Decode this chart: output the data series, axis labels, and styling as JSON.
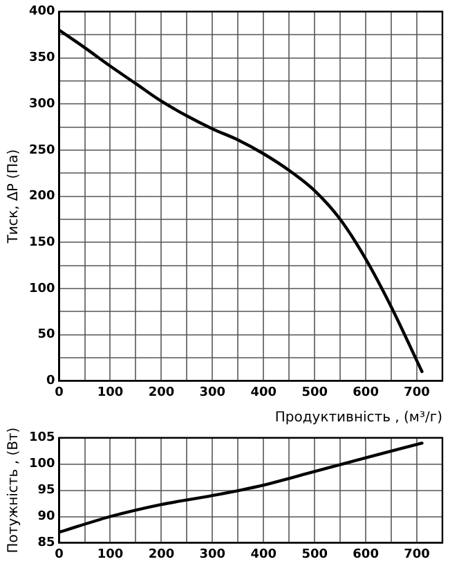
{
  "chart_data": [
    {
      "type": "line",
      "xlabel": "Продуктивність , (м³/г)",
      "ylabel": "Тиск, ΔP (Па)",
      "series": [
        {
          "color": "#000000",
          "x": [
            0,
            50,
            100,
            150,
            200,
            250,
            300,
            350,
            400,
            450,
            500,
            550,
            600,
            650,
            710
          ],
          "values": [
            380,
            361,
            341,
            322,
            303,
            287,
            273,
            261,
            246,
            228,
            206,
            175,
            132,
            80,
            10
          ]
        }
      ],
      "xlim": [
        0,
        750
      ],
      "xticks": [
        0,
        {
          "value": 50,
          "label": null
        },
        100,
        {
          "value": 150,
          "label": null
        },
        200,
        {
          "value": 250,
          "label": null
        },
        300,
        {
          "value": 350,
          "label": null
        },
        400,
        {
          "value": 450,
          "label": null
        },
        500,
        {
          "value": 550,
          "label": null
        },
        600,
        {
          "value": 650,
          "label": null
        },
        700
      ],
      "ylim": [
        0,
        400
      ],
      "yticks": [
        0,
        {
          "value": 25,
          "label": null
        },
        50,
        {
          "value": 75,
          "label": null
        },
        100,
        {
          "value": 125,
          "label": null
        },
        150,
        {
          "value": 175,
          "label": null
        },
        200,
        {
          "value": 225,
          "label": null
        },
        250,
        {
          "value": 275,
          "label": null
        },
        300,
        {
          "value": 325,
          "label": null
        },
        350,
        {
          "value": 375,
          "label": null
        },
        400
      ],
      "grid": true,
      "legend": false,
      "marker": "none",
      "line_style": "solid"
    },
    {
      "type": "line",
      "ylabel": "Потужність , (Вт)",
      "series": [
        {
          "color": "#000000",
          "x": [
            0,
            100,
            200,
            300,
            400,
            500,
            600,
            710
          ],
          "values": [
            87,
            90,
            92.3,
            94,
            96,
            98.6,
            101.2,
            104
          ]
        }
      ],
      "xlim": [
        0,
        750
      ],
      "xticks": [
        0,
        {
          "value": 50,
          "label": null
        },
        100,
        {
          "value": 150,
          "label": null
        },
        200,
        {
          "value": 250,
          "label": null
        },
        300,
        {
          "value": 350,
          "label": null
        },
        400,
        {
          "value": 450,
          "label": null
        },
        500,
        {
          "value": 550,
          "label": null
        },
        600,
        {
          "value": 650,
          "label": null
        },
        700
      ],
      "ylim": [
        85,
        105
      ],
      "yticks": [
        85,
        90,
        95,
        100,
        105
      ],
      "grid": true,
      "legend": false,
      "marker": "none",
      "line_style": "solid"
    }
  ]
}
